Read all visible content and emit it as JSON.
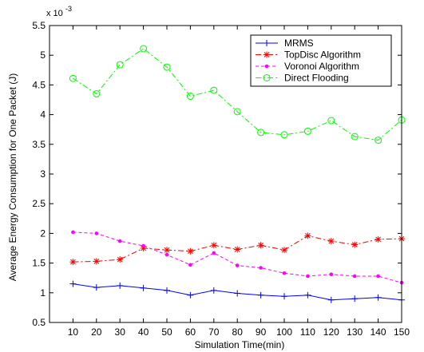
{
  "chart_data": {
    "type": "line",
    "xlabel": "Simulation Time(min)",
    "ylabel": "Average Energy Consumption for One Packet (J)",
    "y_multiplier": "x 10",
    "y_exponent": "-3",
    "x": [
      10,
      20,
      30,
      40,
      50,
      60,
      70,
      80,
      90,
      100,
      110,
      120,
      130,
      140,
      150
    ],
    "x_ticks": [
      "10",
      "20",
      "30",
      "40",
      "50",
      "60",
      "70",
      "80",
      "90",
      "100",
      "110",
      "120",
      "130",
      "140",
      "150"
    ],
    "y_ticks": [
      "0.5",
      "1",
      "1.5",
      "2",
      "2.5",
      "3",
      "3.5",
      "4",
      "4.5",
      "5",
      "5.5"
    ],
    "xlim": [
      0,
      150
    ],
    "ylim": [
      0.5,
      5.5
    ],
    "grid": false,
    "legend_position": "top-right",
    "series": [
      {
        "name": "MRMS",
        "color": "#0000ff",
        "marker": "plus",
        "dash": "solid",
        "values": [
          1.15,
          1.09,
          1.12,
          1.08,
          1.04,
          0.96,
          1.04,
          0.99,
          0.96,
          0.94,
          0.96,
          0.88,
          0.9,
          0.92,
          0.88
        ]
      },
      {
        "name": "TopDisc Algorithm",
        "color": "#ff0000",
        "marker": "star",
        "dash": "dashdot",
        "values": [
          1.52,
          1.53,
          1.56,
          1.75,
          1.72,
          1.7,
          1.8,
          1.73,
          1.8,
          1.72,
          1.96,
          1.87,
          1.81,
          1.9,
          1.91
        ]
      },
      {
        "name": "Voronoi Algorithm",
        "color": "#ff00ff",
        "marker": "point",
        "dash": "dashed",
        "values": [
          2.02,
          2.0,
          1.87,
          1.79,
          1.64,
          1.47,
          1.67,
          1.46,
          1.42,
          1.33,
          1.28,
          1.31,
          1.28,
          1.28,
          1.17
        ]
      },
      {
        "name": "Direct Flooding",
        "color": "#00ff00",
        "marker": "circle",
        "dash": "dashdot",
        "values": [
          4.61,
          4.35,
          4.84,
          5.11,
          4.8,
          4.31,
          4.41,
          4.05,
          3.7,
          3.66,
          3.72,
          3.9,
          3.63,
          3.57,
          3.91
        ]
      }
    ]
  }
}
